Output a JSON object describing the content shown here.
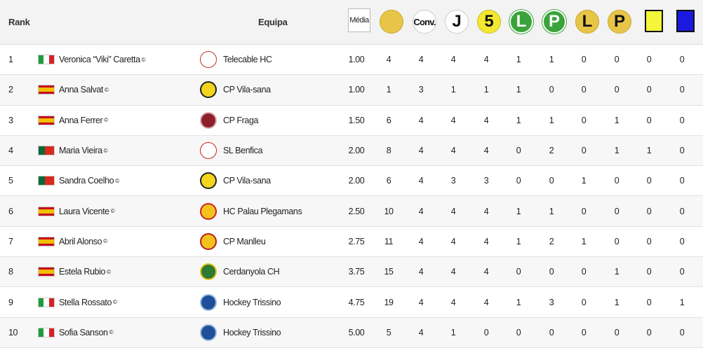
{
  "header": {
    "rank": "Rank",
    "equipa": "Equipa",
    "media": "Média",
    "conv": "Conv.",
    "j": "J",
    "five": "5",
    "l1": "L",
    "p1": "P",
    "l2": "L",
    "p2": "P",
    "colors": {
      "gold": "#e8c547",
      "green": "#3aa43a",
      "yellow_card": "#f5f53a",
      "blue_card": "#1a1adf"
    }
  },
  "rows": [
    {
      "rank": "1",
      "player": "Veronica “Viki” Caretta",
      "mark": "©",
      "country": "italy",
      "team": "Telecable HC",
      "logo": "telecable",
      "media": "1.00",
      "v": [
        "4",
        "4",
        "4",
        "4",
        "1",
        "1",
        "0",
        "0",
        "0",
        "0"
      ]
    },
    {
      "rank": "2",
      "player": "Anna Salvat",
      "mark": "©",
      "country": "spain",
      "team": "CP Vila-sana",
      "logo": "vilasana",
      "media": "1.00",
      "v": [
        "1",
        "3",
        "1",
        "1",
        "1",
        "0",
        "0",
        "0",
        "0",
        "0"
      ]
    },
    {
      "rank": "3",
      "player": "Anna Ferrer",
      "mark": "©",
      "country": "spain",
      "team": "CP Fraga",
      "logo": "fraga",
      "media": "1.50",
      "v": [
        "6",
        "4",
        "4",
        "4",
        "1",
        "1",
        "0",
        "1",
        "0",
        "0"
      ]
    },
    {
      "rank": "4",
      "player": "Maria Vieira",
      "mark": "©",
      "country": "portugal",
      "team": "SL Benfica",
      "logo": "benfica",
      "media": "2.00",
      "v": [
        "8",
        "4",
        "4",
        "4",
        "0",
        "2",
        "0",
        "1",
        "1",
        "0"
      ]
    },
    {
      "rank": "5",
      "player": "Sandra Coelho",
      "mark": "©",
      "country": "portugal",
      "team": "CP Vila-sana",
      "logo": "vilasana",
      "media": "2.00",
      "v": [
        "6",
        "4",
        "3",
        "3",
        "0",
        "0",
        "1",
        "0",
        "0",
        "0"
      ]
    },
    {
      "rank": "6",
      "player": "Laura Vicente",
      "mark": "©",
      "country": "spain",
      "team": "HC Palau Plegamans",
      "logo": "palau",
      "media": "2.50",
      "v": [
        "10",
        "4",
        "4",
        "4",
        "1",
        "1",
        "0",
        "0",
        "0",
        "0"
      ]
    },
    {
      "rank": "7",
      "player": "Abril Alonso",
      "mark": "©",
      "country": "spain",
      "team": "CP Manlleu",
      "logo": "manlleu",
      "media": "2.75",
      "v": [
        "11",
        "4",
        "4",
        "4",
        "1",
        "2",
        "1",
        "0",
        "0",
        "0"
      ]
    },
    {
      "rank": "8",
      "player": "Estela Rubio",
      "mark": "©",
      "country": "spain",
      "team": "Cerdanyola CH",
      "logo": "cerdanyola",
      "media": "3.75",
      "v": [
        "15",
        "4",
        "4",
        "4",
        "0",
        "0",
        "0",
        "1",
        "0",
        "0"
      ]
    },
    {
      "rank": "9",
      "player": "Stella Rossato",
      "mark": "©",
      "country": "italy",
      "team": "Hockey Trissino",
      "logo": "trissino",
      "media": "4.75",
      "v": [
        "19",
        "4",
        "4",
        "4",
        "1",
        "3",
        "0",
        "1",
        "0",
        "1"
      ]
    },
    {
      "rank": "10",
      "player": "Sofia Sanson",
      "mark": "©",
      "country": "italy",
      "team": "Hockey Trissino",
      "logo": "trissino",
      "media": "5.00",
      "v": [
        "5",
        "4",
        "1",
        "0",
        "0",
        "0",
        "0",
        "0",
        "0",
        "0"
      ]
    }
  ]
}
